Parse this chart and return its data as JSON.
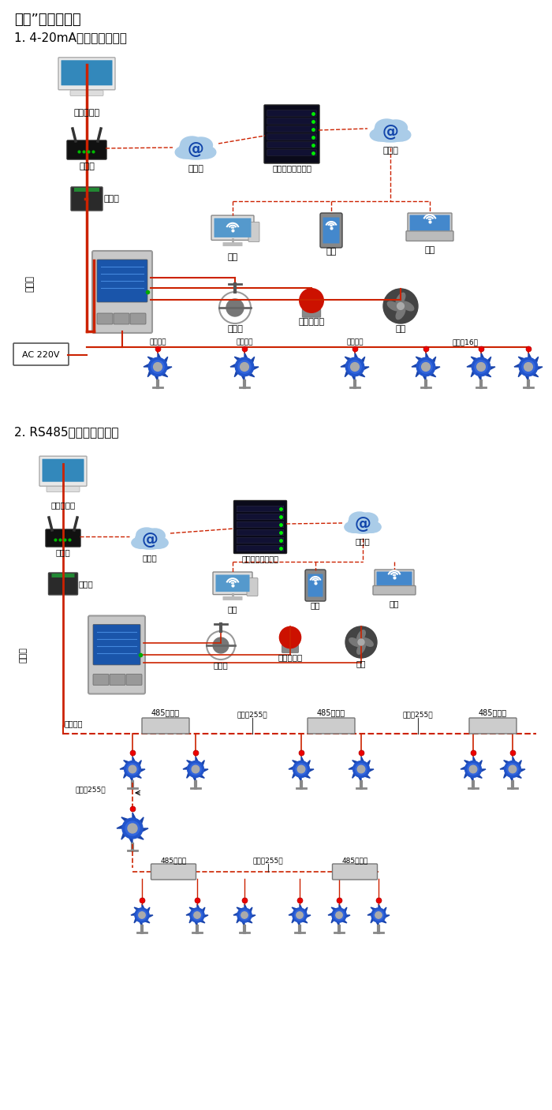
{
  "title1": "大众”系列报警器",
  "title2": "1. 4-20mA信号连接系统图",
  "title3": "2. RS485信号连接系统图",
  "bg_color": "#ffffff",
  "red": "#cc2200",
  "dashed_red": "#cc2200",
  "s1": {
    "computer": "单机版电脑",
    "router": "路由器",
    "converter": "转换器",
    "internet1": "互联网",
    "server": "安帕尔网络服务器",
    "internet2": "互联网",
    "pc": "电脑",
    "phone": "手机",
    "terminal": "终端",
    "valve": "电磁阀",
    "alarm": "声光报警器",
    "fan": "风机",
    "ac": "AC 220V",
    "comm": "通讯线",
    "signal_out1": "信号输出",
    "signal_out2": "信号输出",
    "signal_out3": "信号输出",
    "connect16": "可连接16个"
  },
  "s2": {
    "computer": "单机版电脑",
    "router": "路由器",
    "converter": "转换器",
    "internet1": "互联网",
    "server": "安帕尔网络服务器",
    "internet2": "互联网",
    "pc": "电脑",
    "phone": "手机",
    "terminal": "终端",
    "valve": "电磁阀",
    "alarm": "声光报警器",
    "fan": "风机",
    "comm": "通讯线",
    "repeater": "485中继器",
    "signal_out": "信号输出",
    "connect255a": "可连接255台",
    "connect255b": "可连接255台",
    "connect255c": "可连接255台",
    "connect255d": "可连接255台",
    "connect255e": "可连接255台"
  }
}
